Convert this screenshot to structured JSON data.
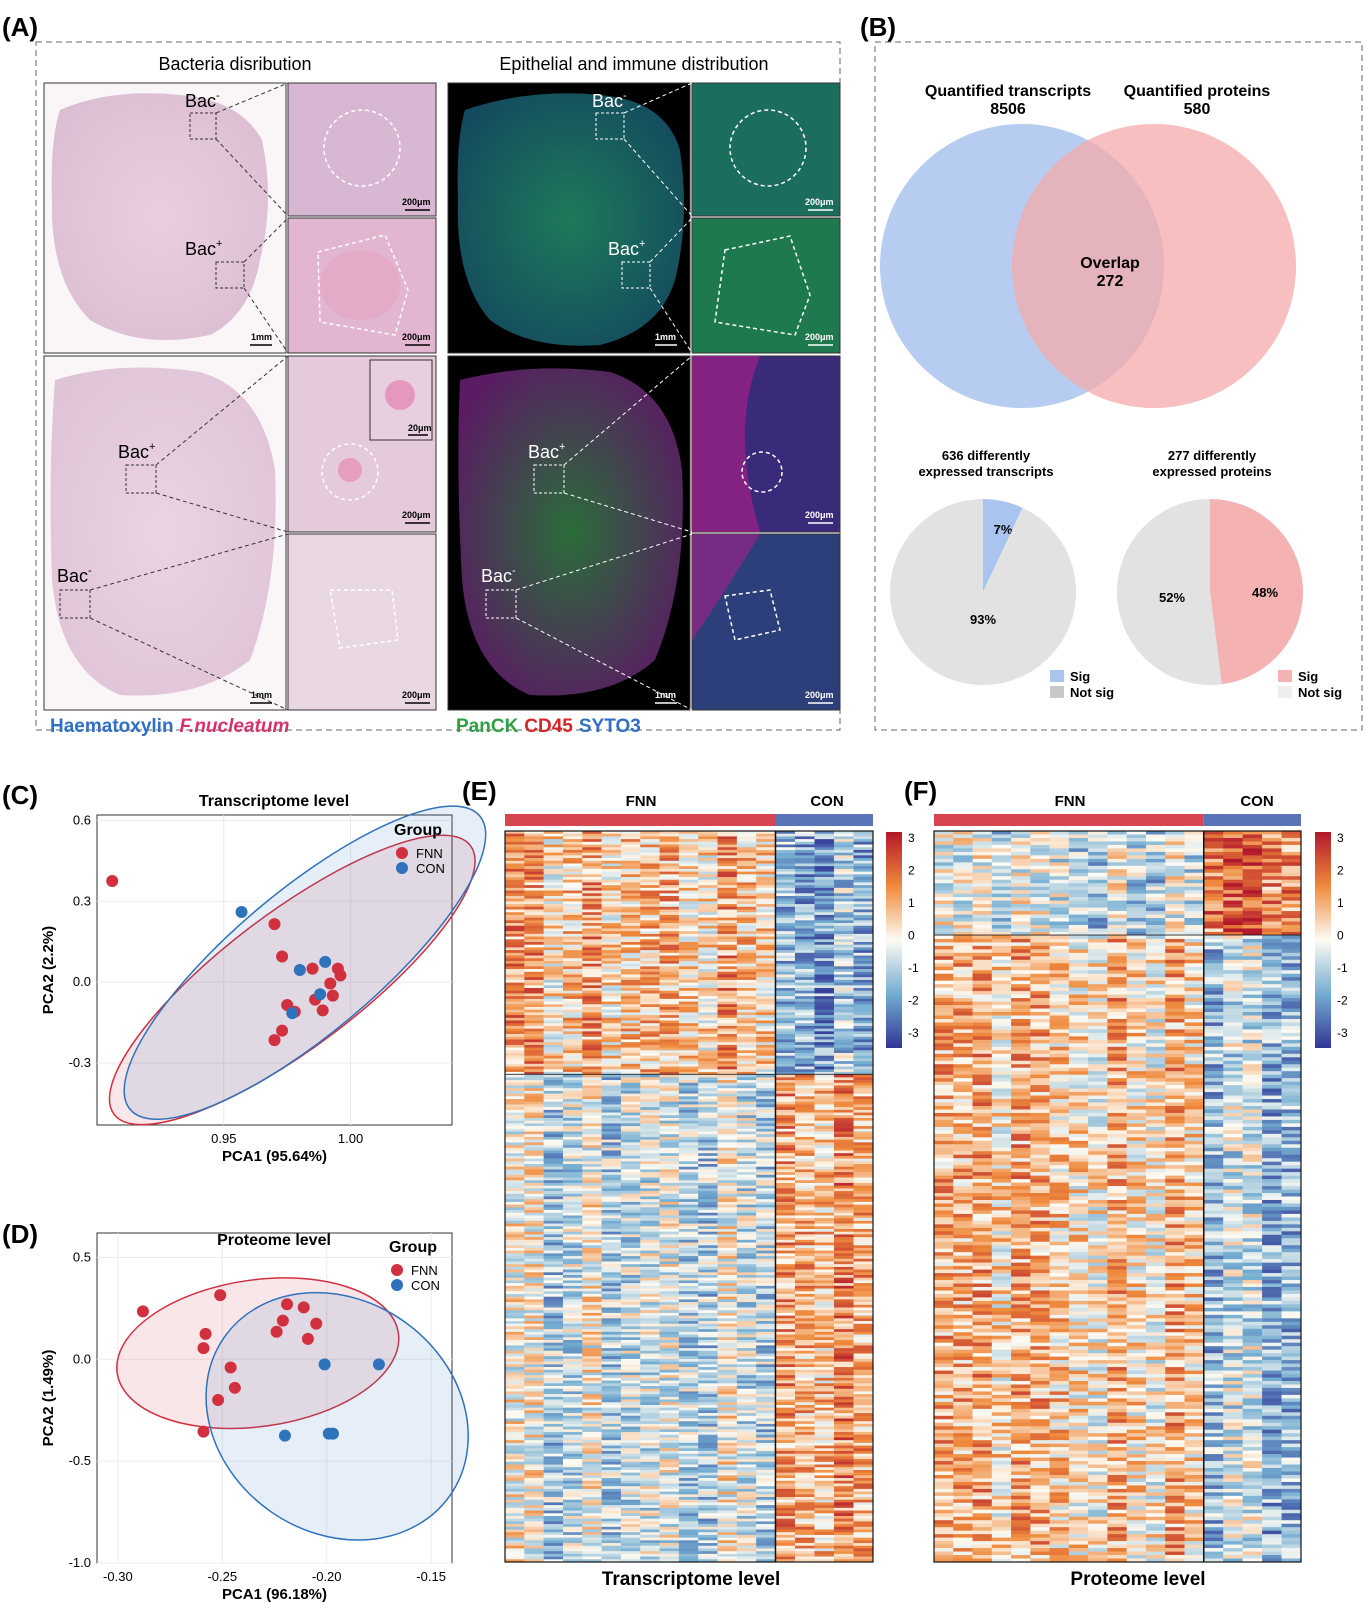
{
  "panelA": {
    "label": "(A)",
    "title_left": "Bacteria disribution",
    "title_right": "Epithelial and immune distribution",
    "bac_neg": "Bac",
    "bac_pos": "Bac",
    "sup_neg": "-",
    "sup_pos": "+",
    "scale_1mm": "1mm",
    "scale_200um": "200μm",
    "scale_20um": "20μm",
    "legend_left": [
      {
        "text": "Haematoxylin",
        "color": "#2f6fc4"
      },
      {
        "text": "F.nucleatum",
        "color": "#d6336c"
      }
    ],
    "legend_right": [
      {
        "text": "PanCK",
        "color": "#2ea043"
      },
      {
        "text": "CD45",
        "color": "#d62728"
      },
      {
        "text": "SYTO3",
        "color": "#2f6fc4"
      }
    ]
  },
  "panelB": {
    "label": "(B)",
    "venn_left_title": "Quantified transcripts",
    "venn_left_count": "8506",
    "venn_right_title": "Quantified proteins",
    "venn_right_count": "580",
    "overlap_label": "Overlap",
    "overlap_count": "272",
    "pie1_title_1": "636 differently",
    "pie1_title_2": "expressed transcripts",
    "pie2_title_1": "277 differently",
    "pie2_title_2": "expressed proteins",
    "legend_sig": "Sig",
    "legend_notsig": "Not sig"
  },
  "panelC": {
    "label": "(C)"
  },
  "panelD": {
    "label": "(D)"
  },
  "panelE": {
    "label": "(E)",
    "group1": "FNN",
    "group2": "CON",
    "bottom": "Transcriptome level"
  },
  "panelF": {
    "label": "(F)",
    "group1": "FNN",
    "group2": "CON",
    "bottom": "Proteome level"
  },
  "colors": {
    "fnn": "#d1303f",
    "con": "#2f72bc",
    "group_bar_fnn": "#d64550",
    "group_bar_con": "#5a74b8",
    "venn_left": "#a9c4ef",
    "venn_right": "#f4a9a9",
    "pie_gray": "#e2e2e2",
    "pie_sig_blue": "#a9c4ef",
    "pie_sig_red": "#f4b2b2"
  },
  "chart_data": [
    {
      "type": "pie",
      "name": "pie-transcripts",
      "slices": [
        {
          "label": "Sig",
          "value": 7,
          "text": "7%"
        },
        {
          "label": "Not sig",
          "value": 93,
          "text": "93%"
        }
      ]
    },
    {
      "type": "pie",
      "name": "pie-proteins",
      "slices": [
        {
          "label": "Sig",
          "value": 48,
          "text": "48%"
        },
        {
          "label": "Not sig",
          "value": 52,
          "text": "52%"
        }
      ]
    },
    {
      "type": "scatter",
      "name": "pca-transcriptome",
      "title": "Transcriptome level",
      "xlabel": "PCA1 (95.64%)",
      "ylabel": "PCA2 (2.2%)",
      "xlim": [
        0.9,
        1.04
      ],
      "ylim": [
        -0.53,
        0.62
      ],
      "xticks": [
        0.95,
        1.0
      ],
      "xtick_labels": [
        "0.95",
        "1.00"
      ],
      "yticks": [
        -0.3,
        0.0,
        0.3,
        0.6
      ],
      "ytick_labels": [
        "-0.3",
        "0.0",
        "0.3",
        "0.6"
      ],
      "legend_title": "Group",
      "series": [
        {
          "name": "FNN",
          "points": [
            [
              0.906,
              0.375
            ],
            [
              0.97,
              0.215
            ],
            [
              0.973,
              0.095
            ],
            [
              0.985,
              0.05
            ],
            [
              0.995,
              0.05
            ],
            [
              0.996,
              0.025
            ],
            [
              0.992,
              -0.005
            ],
            [
              0.993,
              -0.05
            ],
            [
              0.986,
              -0.065
            ],
            [
              0.989,
              -0.105
            ],
            [
              0.975,
              -0.085
            ],
            [
              0.978,
              -0.11
            ],
            [
              0.973,
              -0.18
            ],
            [
              0.97,
              -0.215
            ]
          ]
        },
        {
          "name": "CON",
          "points": [
            [
              0.957,
              0.26
            ],
            [
              0.98,
              0.045
            ],
            [
              0.99,
              0.075
            ],
            [
              0.988,
              -0.045
            ],
            [
              0.977,
              -0.115
            ]
          ]
        }
      ],
      "ellipses": [
        {
          "series": "FNN",
          "cx": 0.977,
          "cy": 0.008,
          "rx": 0.088,
          "ry": 0.25,
          "angle_deg": -37
        },
        {
          "series": "CON",
          "cx": 0.982,
          "cy": 0.072,
          "rx": 0.09,
          "ry": 0.265,
          "angle_deg": -40
        }
      ]
    },
    {
      "type": "scatter",
      "name": "pca-proteome",
      "title": "Proteome level",
      "xlabel": "PCA1 (96.18%)",
      "ylabel": "PCA2 (1.49%)",
      "xlim": [
        -0.31,
        -0.14
      ],
      "ylim": [
        -1.0,
        0.62
      ],
      "xticks": [
        -0.3,
        -0.25,
        -0.2,
        -0.15
      ],
      "xtick_labels": [
        "-0.30",
        "-0.25",
        "-0.20",
        "-0.15"
      ],
      "yticks": [
        -1.0,
        -0.5,
        0.0,
        0.5
      ],
      "ytick_labels": [
        "-1.0",
        "-0.5",
        "0.0",
        "0.5"
      ],
      "legend_title": "Group",
      "series": [
        {
          "name": "FNN",
          "points": [
            [
              -0.288,
              0.235
            ],
            [
              -0.251,
              0.315
            ],
            [
              -0.258,
              0.125
            ],
            [
              -0.259,
              0.055
            ],
            [
              -0.246,
              -0.04
            ],
            [
              -0.244,
              -0.14
            ],
            [
              -0.252,
              -0.2
            ],
            [
              -0.259,
              -0.355
            ],
            [
              -0.224,
              0.135
            ],
            [
              -0.221,
              0.19
            ],
            [
              -0.219,
              0.27
            ],
            [
              -0.211,
              0.255
            ],
            [
              -0.209,
              0.1
            ],
            [
              -0.205,
              0.175
            ]
          ]
        },
        {
          "name": "CON",
          "points": [
            [
              -0.201,
              -0.025
            ],
            [
              -0.175,
              -0.025
            ],
            [
              -0.22,
              -0.375
            ],
            [
              -0.199,
              -0.365
            ],
            [
              -0.197,
              -0.365
            ]
          ]
        }
      ],
      "ellipses": [
        {
          "series": "FNN",
          "cx": -0.233,
          "cy": 0.03,
          "rx": 0.068,
          "ry": 0.36,
          "angle_deg": -8
        },
        {
          "series": "CON",
          "cx": -0.195,
          "cy": -0.28,
          "rx": 0.066,
          "ry": 0.57,
          "angle_deg": 35
        }
      ]
    },
    {
      "type": "heatmap",
      "name": "heatmap-transcriptome",
      "groups": [
        {
          "name": "FNN",
          "columns": 14
        },
        {
          "name": "CON",
          "columns": 5
        }
      ],
      "row_blocks": [
        {
          "rows": 90,
          "fnn_mean": 0.8,
          "con_mean": -1.1
        },
        {
          "rows": 180,
          "fnn_mean": -0.4,
          "con_mean": 1.2
        }
      ],
      "colorbar": {
        "min": -3,
        "max": 3,
        "ticks": [
          "3",
          "2",
          "1",
          "0",
          "-1",
          "-2",
          "-3"
        ]
      }
    },
    {
      "type": "heatmap",
      "name": "heatmap-proteome",
      "groups": [
        {
          "name": "FNN",
          "columns": 14
        },
        {
          "name": "CON",
          "columns": 5
        }
      ],
      "row_blocks": [
        {
          "rows": 30,
          "fnn_mean": -0.5,
          "con_mean": 1.8
        },
        {
          "rows": 180,
          "fnn_mean": 0.6,
          "con_mean": -0.9
        }
      ],
      "colorbar": {
        "min": -3,
        "max": 3,
        "ticks": [
          "3",
          "2",
          "1",
          "0",
          "-1",
          "-2",
          "-3"
        ]
      }
    }
  ]
}
